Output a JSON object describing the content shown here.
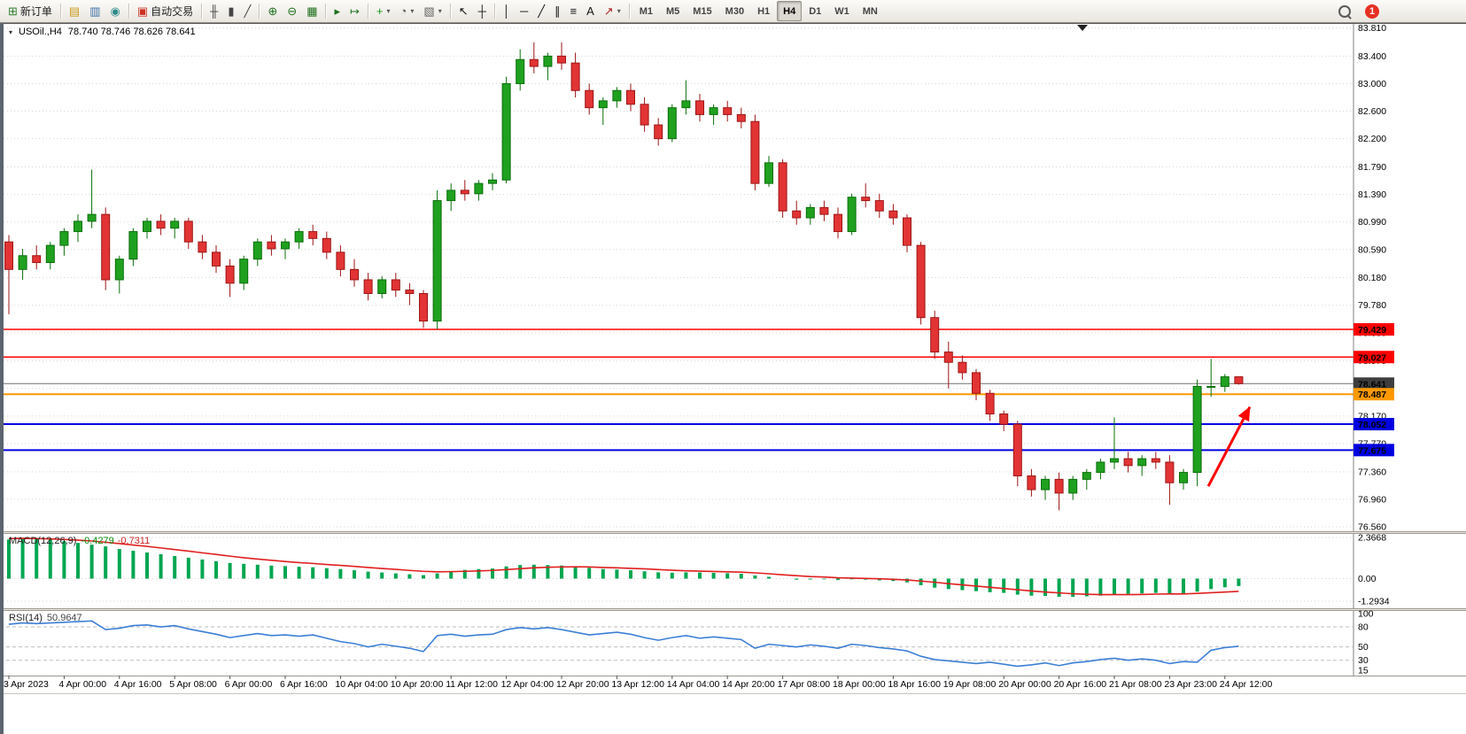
{
  "toolbar": {
    "groups": [
      {
        "items": [
          {
            "name": "new-order-button",
            "icon": "new-order-icon",
            "label": "新订单"
          }
        ]
      },
      {
        "items": [
          {
            "name": "market-watch-button",
            "icon": "market-watch-icon"
          },
          {
            "name": "data-window-button",
            "icon": "data-window-icon"
          },
          {
            "name": "navigator-button",
            "icon": "navigator-icon"
          }
        ]
      },
      {
        "items": [
          {
            "name": "auto-trading-button",
            "icon": "autotrading-icon",
            "label": "自动交易"
          }
        ]
      },
      {
        "items": [
          {
            "name": "bar-chart-button",
            "icon": "bar-chart-icon"
          },
          {
            "name": "candlestick-chart-button",
            "icon": "candlestick-chart-icon"
          },
          {
            "name": "line-chart-button",
            "icon": "line-chart-icon"
          }
        ]
      },
      {
        "items": [
          {
            "name": "zoom-in-button",
            "icon": "zoom-in-icon"
          },
          {
            "name": "zoom-out-button",
            "icon": "zoom-out-icon"
          },
          {
            "name": "tile-windows-button",
            "icon": "tile-windows-icon"
          }
        ]
      },
      {
        "items": [
          {
            "name": "auto-scroll-button",
            "icon": "auto-scroll-icon"
          },
          {
            "name": "chart-shift-button",
            "icon": "chart-shift-icon"
          }
        ]
      },
      {
        "items": [
          {
            "name": "indicators-button",
            "icon": "indicators-icon",
            "caret": true
          },
          {
            "name": "periods-button",
            "icon": "clock-icon",
            "caret": true
          },
          {
            "name": "templates-button",
            "icon": "templates-icon",
            "caret": true
          }
        ]
      },
      {
        "items": [
          {
            "name": "cursor-button",
            "icon": "cursor-icon"
          },
          {
            "name": "crosshair-button",
            "icon": "crosshair-icon"
          }
        ]
      },
      {
        "items": [
          {
            "name": "vertical-line-button",
            "icon": "vertical-line-icon"
          },
          {
            "name": "horizontal-line-button",
            "icon": "horizontal-line-icon"
          },
          {
            "name": "trendline-button",
            "icon": "trendline-icon"
          },
          {
            "name": "channel-button",
            "icon": "channel-icon"
          },
          {
            "name": "fibonacci-button",
            "icon": "fibonacci-icon"
          },
          {
            "name": "text-label-button",
            "icon": "text-icon"
          },
          {
            "name": "arrows-button",
            "icon": "arrows-icon",
            "caret": true
          }
        ]
      }
    ],
    "timeframes": {
      "options": [
        "M1",
        "M5",
        "M15",
        "M30",
        "H1",
        "H4",
        "D1",
        "W1",
        "MN"
      ],
      "active": "H4"
    },
    "right": {
      "notification_count": "1"
    }
  },
  "chart_header": {
    "symbol_period": "USOil.,H4",
    "ohlc": "78.740 78.746 78.626 78.641"
  },
  "chart_data": {
    "type": "candlestick",
    "symbol": "USOil.",
    "timeframe": "H4",
    "colors": {
      "bull": "#1fa11f",
      "bull_border": "#0b6f0b",
      "bear": "#e23434",
      "bear_border": "#9e1515",
      "macd_histogram": "#00a650",
      "macd_signal": "#e01f1f",
      "rsi": "#3c7fd6",
      "grid": "#d6d6d6"
    },
    "price_axis": [
      "83.810",
      "83.400",
      "83.000",
      "82.600",
      "82.200",
      "81.790",
      "81.390",
      "80.990",
      "80.590",
      "80.180",
      "79.780",
      "79.380",
      "78.970",
      "78.570",
      "78.170",
      "77.770",
      "77.360",
      "76.960",
      "76.560"
    ],
    "hlines": [
      {
        "name": "resistance-line-1",
        "price": 79.429,
        "label": "79.429",
        "color": "#ff0000",
        "width": 1.4,
        "tag_bg": "#ff0000"
      },
      {
        "name": "resistance-line-2",
        "price": 79.027,
        "label": "79.027",
        "color": "#ff0000",
        "width": 1.4,
        "tag_bg": "#ff0000"
      },
      {
        "name": "bid-price-line",
        "price": 78.641,
        "label": "78.641",
        "color": "#707070",
        "width": 1,
        "tag_bg": "#3e3e3e"
      },
      {
        "name": "pivot-line-orange",
        "price": 78.487,
        "label": "78.487",
        "color": "#ff9900",
        "width": 2,
        "tag_bg": "#ff9900"
      },
      {
        "name": "support-line-1",
        "price": 78.052,
        "label": "78.052",
        "color": "#0000e0",
        "width": 2,
        "tag_bg": "#0000e0"
      },
      {
        "name": "support-line-2",
        "price": 77.675,
        "label": "77.675",
        "color": "#0000e0",
        "width": 2,
        "tag_bg": "#0000e0"
      }
    ],
    "arrow": {
      "from_bar": 86.8,
      "from_price": 77.15,
      "to_bar": 89.8,
      "to_price": 78.3,
      "color": "#ff0000"
    },
    "time_labels": [
      "3 Apr 2023",
      "4 Apr 00:00",
      "4 Apr 16:00",
      "5 Apr 08:00",
      "6 Apr 00:00",
      "6 Apr 16:00",
      "10 Apr 04:00",
      "10 Apr 20:00",
      "11 Apr 12:00",
      "12 Apr 04:00",
      "12 Apr 20:00",
      "13 Apr 12:00",
      "14 Apr 04:00",
      "14 Apr 20:00",
      "17 Apr 08:00",
      "18 Apr 00:00",
      "18 Apr 16:00",
      "19 Apr 08:00",
      "20 Apr 00:00",
      "20 Apr 16:00",
      "21 Apr 08:00",
      "23 Apr 23:00",
      "24 Apr 12:00"
    ],
    "candles": [
      [
        80.7,
        80.8,
        79.65,
        80.3
      ],
      [
        80.3,
        80.6,
        80.15,
        80.5
      ],
      [
        80.5,
        80.65,
        80.3,
        80.4
      ],
      [
        80.4,
        80.7,
        80.3,
        80.65
      ],
      [
        80.65,
        80.9,
        80.5,
        80.85
      ],
      [
        80.85,
        81.1,
        80.7,
        81.0
      ],
      [
        81.0,
        81.75,
        80.9,
        81.1
      ],
      [
        81.1,
        81.2,
        80.0,
        80.15
      ],
      [
        80.15,
        80.5,
        79.95,
        80.45
      ],
      [
        80.45,
        80.9,
        80.35,
        80.85
      ],
      [
        80.85,
        81.05,
        80.75,
        81.0
      ],
      [
        81.0,
        81.1,
        80.8,
        80.9
      ],
      [
        80.9,
        81.05,
        80.75,
        81.0
      ],
      [
        81.0,
        81.05,
        80.6,
        80.7
      ],
      [
        80.7,
        80.8,
        80.45,
        80.55
      ],
      [
        80.55,
        80.65,
        80.25,
        80.35
      ],
      [
        80.35,
        80.45,
        79.9,
        80.1
      ],
      [
        80.1,
        80.5,
        80.0,
        80.45
      ],
      [
        80.45,
        80.75,
        80.35,
        80.7
      ],
      [
        80.7,
        80.8,
        80.5,
        80.6
      ],
      [
        80.6,
        80.75,
        80.45,
        80.7
      ],
      [
        80.7,
        80.9,
        80.6,
        80.85
      ],
      [
        80.85,
        80.95,
        80.65,
        80.75
      ],
      [
        80.75,
        80.85,
        80.45,
        80.55
      ],
      [
        80.55,
        80.65,
        80.2,
        80.3
      ],
      [
        80.3,
        80.45,
        80.05,
        80.15
      ],
      [
        80.15,
        80.25,
        79.85,
        79.95
      ],
      [
        79.95,
        80.2,
        79.88,
        80.15
      ],
      [
        80.15,
        80.25,
        79.9,
        80.0
      ],
      [
        80.0,
        80.1,
        79.78,
        79.95
      ],
      [
        79.95,
        80.0,
        79.45,
        79.55
      ],
      [
        79.55,
        81.45,
        79.43,
        81.3
      ],
      [
        81.3,
        81.55,
        81.15,
        81.45
      ],
      [
        81.45,
        81.6,
        81.3,
        81.4
      ],
      [
        81.4,
        81.6,
        81.3,
        81.55
      ],
      [
        81.55,
        81.7,
        81.45,
        81.6
      ],
      [
        81.6,
        83.1,
        81.55,
        83.0
      ],
      [
        83.0,
        83.5,
        82.9,
        83.35
      ],
      [
        83.35,
        83.6,
        83.15,
        83.25
      ],
      [
        83.25,
        83.45,
        83.05,
        83.4
      ],
      [
        83.4,
        83.6,
        83.2,
        83.3
      ],
      [
        83.3,
        83.45,
        82.8,
        82.9
      ],
      [
        82.9,
        83.0,
        82.55,
        82.65
      ],
      [
        82.65,
        82.8,
        82.4,
        82.75
      ],
      [
        82.75,
        82.95,
        82.65,
        82.9
      ],
      [
        82.9,
        83.0,
        82.6,
        82.7
      ],
      [
        82.7,
        82.8,
        82.3,
        82.4
      ],
      [
        82.4,
        82.5,
        82.1,
        82.2
      ],
      [
        82.2,
        82.7,
        82.15,
        82.65
      ],
      [
        82.65,
        83.05,
        82.55,
        82.75
      ],
      [
        82.75,
        82.85,
        82.45,
        82.55
      ],
      [
        82.55,
        82.7,
        82.4,
        82.65
      ],
      [
        82.65,
        82.75,
        82.45,
        82.55
      ],
      [
        82.55,
        82.65,
        82.35,
        82.45
      ],
      [
        82.45,
        82.55,
        81.45,
        81.55
      ],
      [
        81.55,
        81.95,
        81.5,
        81.85
      ],
      [
        81.85,
        81.9,
        81.05,
        81.15
      ],
      [
        81.15,
        81.3,
        80.95,
        81.05
      ],
      [
        81.05,
        81.25,
        80.95,
        81.2
      ],
      [
        81.2,
        81.3,
        81.0,
        81.1
      ],
      [
        81.1,
        81.2,
        80.75,
        80.85
      ],
      [
        80.85,
        81.4,
        80.8,
        81.35
      ],
      [
        81.35,
        81.55,
        81.2,
        81.3
      ],
      [
        81.3,
        81.4,
        81.05,
        81.15
      ],
      [
        81.15,
        81.25,
        80.95,
        81.05
      ],
      [
        81.05,
        81.1,
        80.55,
        80.65
      ],
      [
        80.65,
        80.7,
        79.5,
        79.6
      ],
      [
        79.6,
        79.7,
        79.0,
        79.1
      ],
      [
        79.1,
        79.25,
        78.57,
        78.95
      ],
      [
        78.95,
        79.05,
        78.7,
        78.8
      ],
      [
        78.8,
        78.85,
        78.4,
        78.5
      ],
      [
        78.5,
        78.55,
        78.1,
        78.2
      ],
      [
        78.2,
        78.25,
        77.95,
        78.05
      ],
      [
        78.05,
        78.1,
        77.15,
        77.3
      ],
      [
        77.3,
        77.4,
        77.0,
        77.1
      ],
      [
        77.1,
        77.3,
        76.95,
        77.25
      ],
      [
        77.25,
        77.35,
        76.8,
        77.05
      ],
      [
        77.05,
        77.3,
        76.95,
        77.25
      ],
      [
        77.25,
        77.4,
        77.1,
        77.35
      ],
      [
        77.35,
        77.55,
        77.25,
        77.5
      ],
      [
        77.5,
        78.15,
        77.4,
        77.55
      ],
      [
        77.55,
        77.65,
        77.35,
        77.45
      ],
      [
        77.45,
        77.6,
        77.3,
        77.55
      ],
      [
        77.55,
        77.65,
        77.4,
        77.5
      ],
      [
        77.5,
        77.6,
        76.88,
        77.2
      ],
      [
        77.2,
        77.4,
        77.1,
        77.35
      ],
      [
        77.35,
        78.7,
        77.15,
        78.6
      ],
      [
        78.6,
        79.0,
        78.45,
        78.6
      ],
      [
        78.6,
        78.78,
        78.52,
        78.74
      ],
      [
        78.74,
        78.746,
        78.626,
        78.641
      ]
    ],
    "macd": {
      "label": "MACD(12,26,9)",
      "value_main": "-0.4279",
      "value_signal": "-0.7311",
      "axis": [
        "2.3668",
        "0.00",
        "-1.2934"
      ],
      "histogram": [
        2.25,
        2.35,
        2.3,
        2.25,
        2.15,
        2.05,
        1.95,
        1.85,
        1.7,
        1.6,
        1.5,
        1.4,
        1.3,
        1.2,
        1.1,
        1.0,
        0.9,
        0.85,
        0.8,
        0.75,
        0.72,
        0.68,
        0.65,
        0.6,
        0.55,
        0.48,
        0.4,
        0.35,
        0.3,
        0.25,
        0.2,
        0.3,
        0.42,
        0.5,
        0.55,
        0.58,
        0.7,
        0.78,
        0.8,
        0.78,
        0.75,
        0.7,
        0.62,
        0.55,
        0.52,
        0.48,
        0.42,
        0.36,
        0.34,
        0.36,
        0.35,
        0.33,
        0.31,
        0.28,
        0.18,
        0.1,
        0.0,
        -0.06,
        -0.05,
        -0.04,
        -0.08,
        -0.04,
        -0.06,
        -0.1,
        -0.14,
        -0.22,
        -0.38,
        -0.52,
        -0.6,
        -0.66,
        -0.72,
        -0.78,
        -0.82,
        -0.92,
        -0.98,
        -1.0,
        -1.04,
        -1.05,
        -1.02,
        -0.98,
        -0.92,
        -0.88,
        -0.85,
        -0.82,
        -0.85,
        -0.87,
        -0.75,
        -0.6,
        -0.5,
        -0.4279
      ],
      "signal": [
        2.3,
        2.31,
        2.3,
        2.28,
        2.25,
        2.21,
        2.16,
        2.09,
        2.01,
        1.93,
        1.85,
        1.76,
        1.67,
        1.58,
        1.48,
        1.39,
        1.29,
        1.2,
        1.12,
        1.05,
        0.98,
        0.92,
        0.87,
        0.81,
        0.76,
        0.7,
        0.64,
        0.58,
        0.53,
        0.47,
        0.42,
        0.39,
        0.4,
        0.42,
        0.44,
        0.47,
        0.52,
        0.57,
        0.62,
        0.65,
        0.67,
        0.68,
        0.67,
        0.64,
        0.62,
        0.59,
        0.56,
        0.52,
        0.48,
        0.45,
        0.43,
        0.41,
        0.39,
        0.37,
        0.33,
        0.28,
        0.22,
        0.17,
        0.12,
        0.09,
        0.05,
        0.03,
        0.01,
        -0.01,
        -0.04,
        -0.08,
        -0.14,
        -0.21,
        -0.29,
        -0.36,
        -0.43,
        -0.5,
        -0.57,
        -0.64,
        -0.71,
        -0.77,
        -0.82,
        -0.87,
        -0.9,
        -0.92,
        -0.92,
        -0.92,
        -0.91,
        -0.89,
        -0.88,
        -0.88,
        -0.85,
        -0.81,
        -0.77,
        -0.7311
      ]
    },
    "rsi": {
      "label": "RSI(14)",
      "value": "50.9647",
      "axis": [
        "100",
        "80",
        "50",
        "30",
        "15"
      ],
      "levels": [
        80,
        50,
        30
      ],
      "values": [
        84,
        86,
        85,
        86,
        87,
        88,
        89,
        76,
        78,
        82,
        83,
        80,
        82,
        77,
        73,
        69,
        64,
        67,
        70,
        67,
        68,
        66,
        68,
        63,
        58,
        55,
        50,
        54,
        51,
        48,
        43,
        67,
        69,
        66,
        68,
        69,
        76,
        79,
        77,
        79,
        76,
        72,
        68,
        70,
        72,
        69,
        64,
        60,
        64,
        67,
        63,
        65,
        63,
        61,
        48,
        54,
        52,
        50,
        53,
        51,
        48,
        54,
        52,
        49,
        47,
        44,
        36,
        31,
        29,
        27,
        25,
        27,
        24,
        21,
        23,
        26,
        22,
        26,
        28,
        31,
        33,
        30,
        32,
        30,
        25,
        28,
        27,
        45,
        49,
        50.9647
      ]
    }
  }
}
